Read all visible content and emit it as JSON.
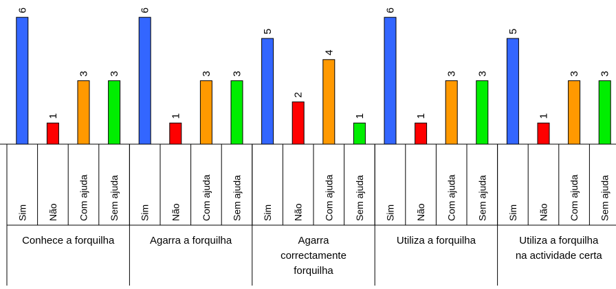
{
  "chart_data": {
    "type": "bar",
    "groups": [
      {
        "label": "Conhece a forquilha",
        "label_lines": [
          "Conhece a forquilha"
        ],
        "bars": [
          {
            "category": "Sim",
            "value": 6
          },
          {
            "category": "Não",
            "value": 1
          },
          {
            "category": "Com ajuda",
            "value": 3
          },
          {
            "category": "Sem ajuda",
            "value": 3
          }
        ]
      },
      {
        "label": "Agarra a forquilha",
        "label_lines": [
          "Agarra a forquilha"
        ],
        "bars": [
          {
            "category": "Sim",
            "value": 6
          },
          {
            "category": "Não",
            "value": 1
          },
          {
            "category": "Com ajuda",
            "value": 3
          },
          {
            "category": "Sem ajuda",
            "value": 3
          }
        ]
      },
      {
        "label": "Agarra correctamente forquilha",
        "label_lines": [
          "Agarra",
          "correctamente",
          "forquilha"
        ],
        "bars": [
          {
            "category": "Sim",
            "value": 5
          },
          {
            "category": "Não",
            "value": 2
          },
          {
            "category": "Com ajuda",
            "value": 4
          },
          {
            "category": "Sem ajuda",
            "value": 1
          }
        ]
      },
      {
        "label": "Utiliza a forquilha",
        "label_lines": [
          "Utiliza a forquilha"
        ],
        "bars": [
          {
            "category": "Sim",
            "value": 6
          },
          {
            "category": "Não",
            "value": 1
          },
          {
            "category": "Com ajuda",
            "value": 3
          },
          {
            "category": "Sem ajuda",
            "value": 3
          }
        ]
      },
      {
        "label": "Utiliza a forquilha na actividade certa",
        "label_lines": [
          "Utiliza a forquilha",
          "na actividade certa"
        ],
        "bars": [
          {
            "category": "Sim",
            "value": 5
          },
          {
            "category": "Não",
            "value": 1
          },
          {
            "category": "Com ajuda",
            "value": 3
          },
          {
            "category": "Sem ajuda",
            "value": 3
          }
        ]
      }
    ],
    "colors": {
      "Sim": "#3366ff",
      "Não": "#ff0000",
      "Com ajuda": "#ff9900",
      "Sem ajuda": "#00ee00"
    },
    "ylim": [
      0,
      6.6
    ],
    "grid": false,
    "legend": "none",
    "data_labels": true
  }
}
